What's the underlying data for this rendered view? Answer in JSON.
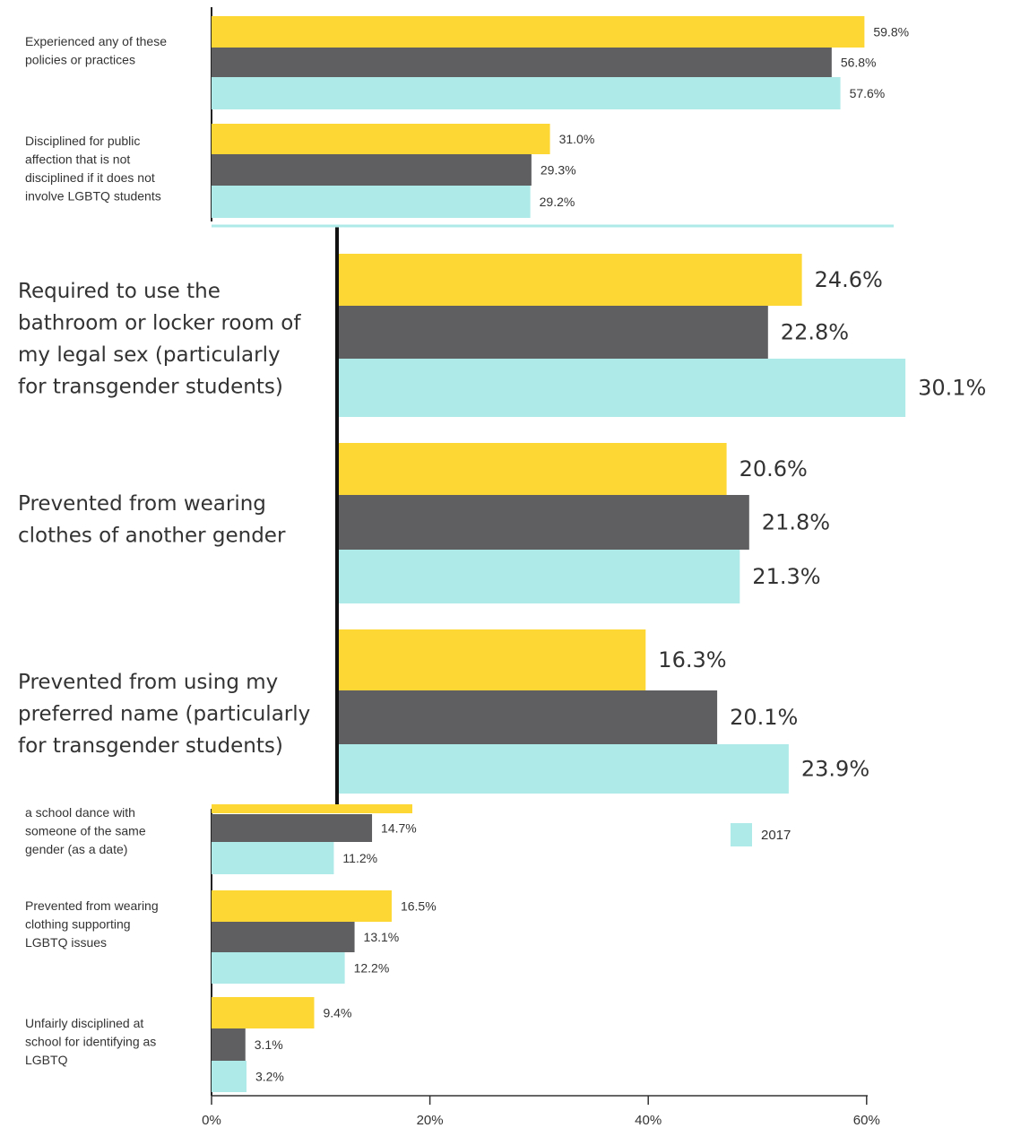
{
  "chart_data": {
    "type": "bar",
    "orientation": "horizontal",
    "colors": [
      "#fdd835",
      "#5f5f62",
      "#aeeae8"
    ],
    "xlim": [
      0,
      60
    ],
    "xticks": [
      "0%",
      "20%",
      "40%",
      "60%"
    ],
    "legend": {
      "label": "2017",
      "color": "#aeeae8",
      "placement": "right"
    },
    "groups": [
      {
        "label": [
          "Experienced any of these",
          "policies or practices"
        ],
        "values": [
          59.8,
          56.8,
          57.6
        ],
        "labels": [
          "59.8%",
          "56.8%",
          "57.6%"
        ],
        "panel": "small"
      },
      {
        "label": [
          "Disciplined for public",
          "affection that is not",
          "disciplined if it does not",
          "involve LGBTQ students"
        ],
        "values": [
          31.0,
          29.3,
          29.2
        ],
        "labels": [
          "31.0%",
          "29.3%",
          "29.2%"
        ],
        "panel": "small"
      },
      {
        "label": [
          "Required to use the",
          "bathroom or locker room of",
          "my legal sex (particularly",
          "for transgender students)"
        ],
        "values": [
          24.6,
          22.8,
          30.1
        ],
        "labels": [
          "24.6%",
          "22.8%",
          "30.1%"
        ],
        "panel": "zoom"
      },
      {
        "label": [
          "Prevented from wearing",
          "clothes of another gender"
        ],
        "values": [
          20.6,
          21.8,
          21.3
        ],
        "labels": [
          "20.6%",
          "21.8%",
          "21.3%"
        ],
        "panel": "zoom"
      },
      {
        "label": [
          "Prevented from using my",
          "preferred name (particularly",
          "for transgender students)"
        ],
        "values": [
          16.3,
          20.1,
          23.9
        ],
        "labels": [
          "16.3%",
          "20.1%",
          "23.9%"
        ],
        "panel": "zoom"
      },
      {
        "label": [
          "a school dance with",
          "someone of the same",
          "gender (as a date)"
        ],
        "values": [
          null,
          14.7,
          11.2
        ],
        "labels": [
          "",
          "14.7%",
          "11.2%"
        ],
        "panel": "small",
        "cropped": true
      },
      {
        "label": [
          "Prevented from wearing",
          "clothing supporting",
          "LGBTQ issues"
        ],
        "values": [
          16.5,
          13.1,
          12.2
        ],
        "labels": [
          "16.5%",
          "13.1%",
          "12.2%"
        ],
        "panel": "small"
      },
      {
        "label": [
          "Unfairly disciplined at",
          "school for identifying as",
          "LGBTQ"
        ],
        "values": [
          9.4,
          3.1,
          3.2
        ],
        "labels": [
          "9.4%",
          "3.1%",
          "3.2%"
        ],
        "panel": "small"
      }
    ]
  }
}
